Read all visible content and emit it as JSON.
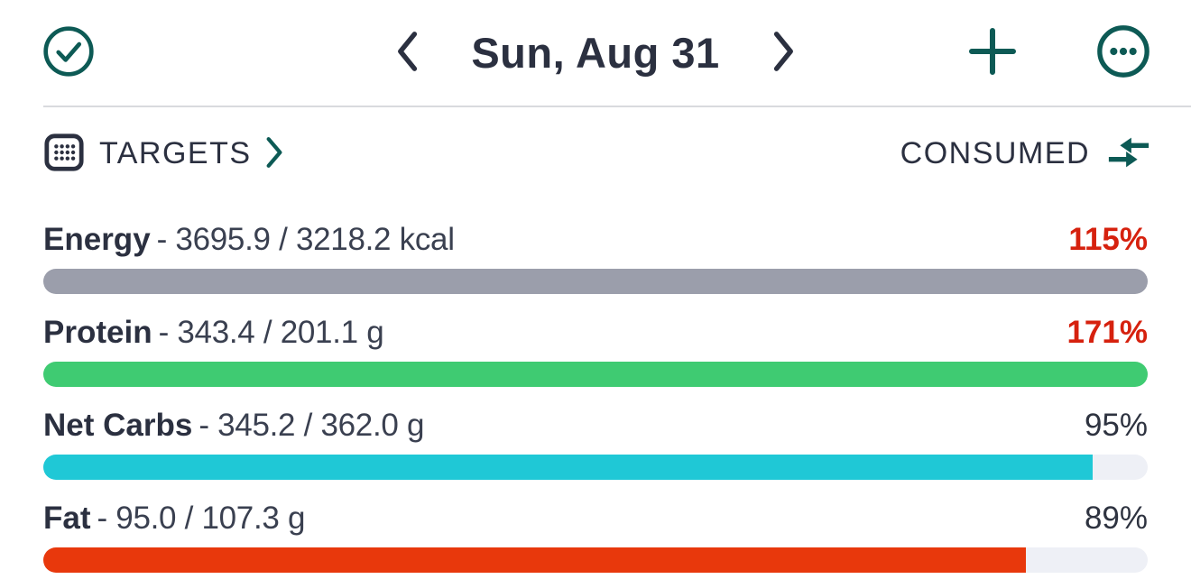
{
  "header": {
    "date_label": "Sun, Aug 31"
  },
  "section": {
    "targets_label": "TARGETS",
    "consumed_label": "CONSUMED"
  },
  "colors": {
    "accent_teal": "#0d5a55",
    "text_dark": "#2b3040",
    "percent_over": "#d6210e",
    "percent_normal": "#2e3340",
    "track": "#eef0f6",
    "divider": "#d9dade"
  },
  "nutrients": [
    {
      "name": "Energy",
      "consumed": "3695.9",
      "target": "3218.2",
      "unit": "kcal",
      "percent": 115,
      "bar_color": "#9b9eab"
    },
    {
      "name": "Protein",
      "consumed": "343.4",
      "target": "201.1",
      "unit": "g",
      "percent": 171,
      "bar_color": "#3fcb72"
    },
    {
      "name": "Net Carbs",
      "consumed": "345.2",
      "target": "362.0",
      "unit": "g",
      "percent": 95,
      "bar_color": "#1fc8d6"
    },
    {
      "name": "Fat",
      "consumed": "95.0",
      "target": "107.3",
      "unit": "g",
      "percent": 89,
      "bar_color": "#e8380c"
    }
  ]
}
